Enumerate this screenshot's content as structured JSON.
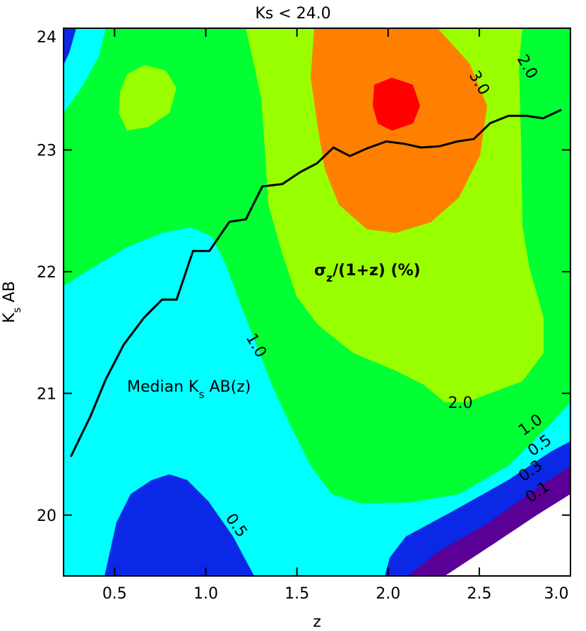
{
  "chart_data": {
    "type": "contour",
    "title": "Ks < 24.0",
    "x_label": "z",
    "y_label": [
      {
        "text": "K"
      },
      {
        "text": "s",
        "sub": true
      },
      {
        "text": " AB"
      }
    ],
    "xlim": [
      0.22,
      3.0
    ],
    "ylim": [
      19.5,
      24.0
    ],
    "xticks": [
      0.5,
      {
        "value": 1,
        "label": "1.0"
      },
      1.5,
      {
        "value": 2,
        "label": "2.0"
      },
      2.5,
      {
        "value": 3,
        "label": "3.0"
      }
    ],
    "yticks": [
      20,
      21,
      22,
      23,
      24
    ],
    "levels": [
      0.1,
      0.3,
      0.5,
      1,
      2,
      3,
      4
    ],
    "colors": [
      "#ffffff",
      "#5a0096",
      "#0a28e6",
      "#00ffff",
      "#00ff33",
      "#99ff00",
      "#ff8000",
      "#ff0000"
    ],
    "contour_labels": [
      {
        "value": 3,
        "label": "3.0"
      },
      {
        "value": 2,
        "label": "2.0"
      },
      {
        "value": 1,
        "label": "1.0"
      },
      {
        "value": 2,
        "label": "2.0"
      },
      {
        "value": 1,
        "label": "1.0"
      },
      {
        "value": 0.5,
        "label": "0.5"
      },
      {
        "value": 0.3,
        "label": "0.3"
      },
      {
        "value": 0.1,
        "label": "0.1"
      },
      {
        "value": 0.5,
        "label": "0.5"
      }
    ],
    "label_color": "#ff0000",
    "annotations": [
      {
        "parts": [
          {
            "text": "σ"
          },
          {
            "text": "z",
            "sub": true
          },
          {
            "text": "/(1+z) (%)"
          }
        ],
        "color": "#ff0000"
      },
      {
        "parts": [
          {
            "text": "Median K"
          },
          {
            "text": "s",
            "sub": true
          },
          {
            "text": " AB(z)"
          }
        ],
        "color": "#000000"
      }
    ],
    "x": [
      0.26,
      0.37,
      0.45,
      0.55,
      0.66,
      0.76,
      0.84,
      0.93,
      1.02,
      1.13,
      1.22,
      1.31,
      1.42,
      1.52,
      1.61,
      1.7,
      1.79,
      1.88,
      1.99,
      2.09,
      2.18,
      2.28,
      2.38,
      2.47,
      2.56,
      2.66,
      2.76,
      2.85,
      2.95
    ],
    "values": [
      20.48,
      20.82,
      21.11,
      21.4,
      21.62,
      21.77,
      21.77,
      22.17,
      22.17,
      22.41,
      22.43,
      22.7,
      22.72,
      22.82,
      22.89,
      23.02,
      22.95,
      23.01,
      23.07,
      23.05,
      23.02,
      23.03,
      23.07,
      23.09,
      23.22,
      23.28,
      23.28,
      23.26,
      23.33
    ],
    "line_color": "#000000"
  }
}
